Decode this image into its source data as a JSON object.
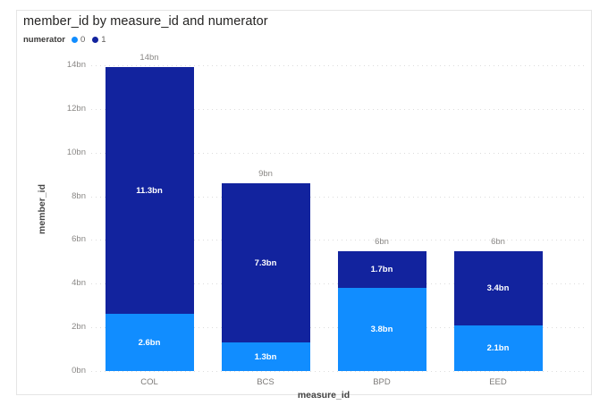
{
  "title": "member_id by measure_id and numerator",
  "legend": {
    "title": "numerator",
    "items": [
      {
        "label": "0",
        "color": "#118DFF"
      },
      {
        "label": "1",
        "color": "#12239E"
      }
    ]
  },
  "chart_data": {
    "type": "bar",
    "stacked": true,
    "title": "member_id by measure_id and numerator",
    "xlabel": "measure_id",
    "ylabel": "member_id",
    "categories": [
      "COL",
      "BCS",
      "BPD",
      "EED"
    ],
    "series": [
      {
        "name": "0",
        "color": "#118DFF",
        "values": [
          2.6,
          1.3,
          3.8,
          2.1
        ],
        "labels": [
          "2.6bn",
          "1.3bn",
          "3.8bn",
          "2.1bn"
        ]
      },
      {
        "name": "1",
        "color": "#12239E",
        "values": [
          11.3,
          7.3,
          1.7,
          3.4
        ],
        "labels": [
          "11.3bn",
          "7.3bn",
          "1.7bn",
          "3.4bn"
        ]
      }
    ],
    "total_labels": [
      "14bn",
      "9bn",
      "6bn",
      "6bn"
    ],
    "ylim": [
      0,
      14
    ],
    "ytick_step": 2,
    "ytick_labels": [
      "0bn",
      "2bn",
      "4bn",
      "6bn",
      "8bn",
      "10bn",
      "12bn",
      "14bn"
    ],
    "grid": "horizontal-dotted",
    "legend_position": "top-left"
  },
  "colors": {
    "series0": "#118DFF",
    "series1": "#12239E",
    "gridline": "#dcdcdc",
    "card_border": "#e5e5e5",
    "tick_text": "#8a8886",
    "title_text": "#252423"
  }
}
